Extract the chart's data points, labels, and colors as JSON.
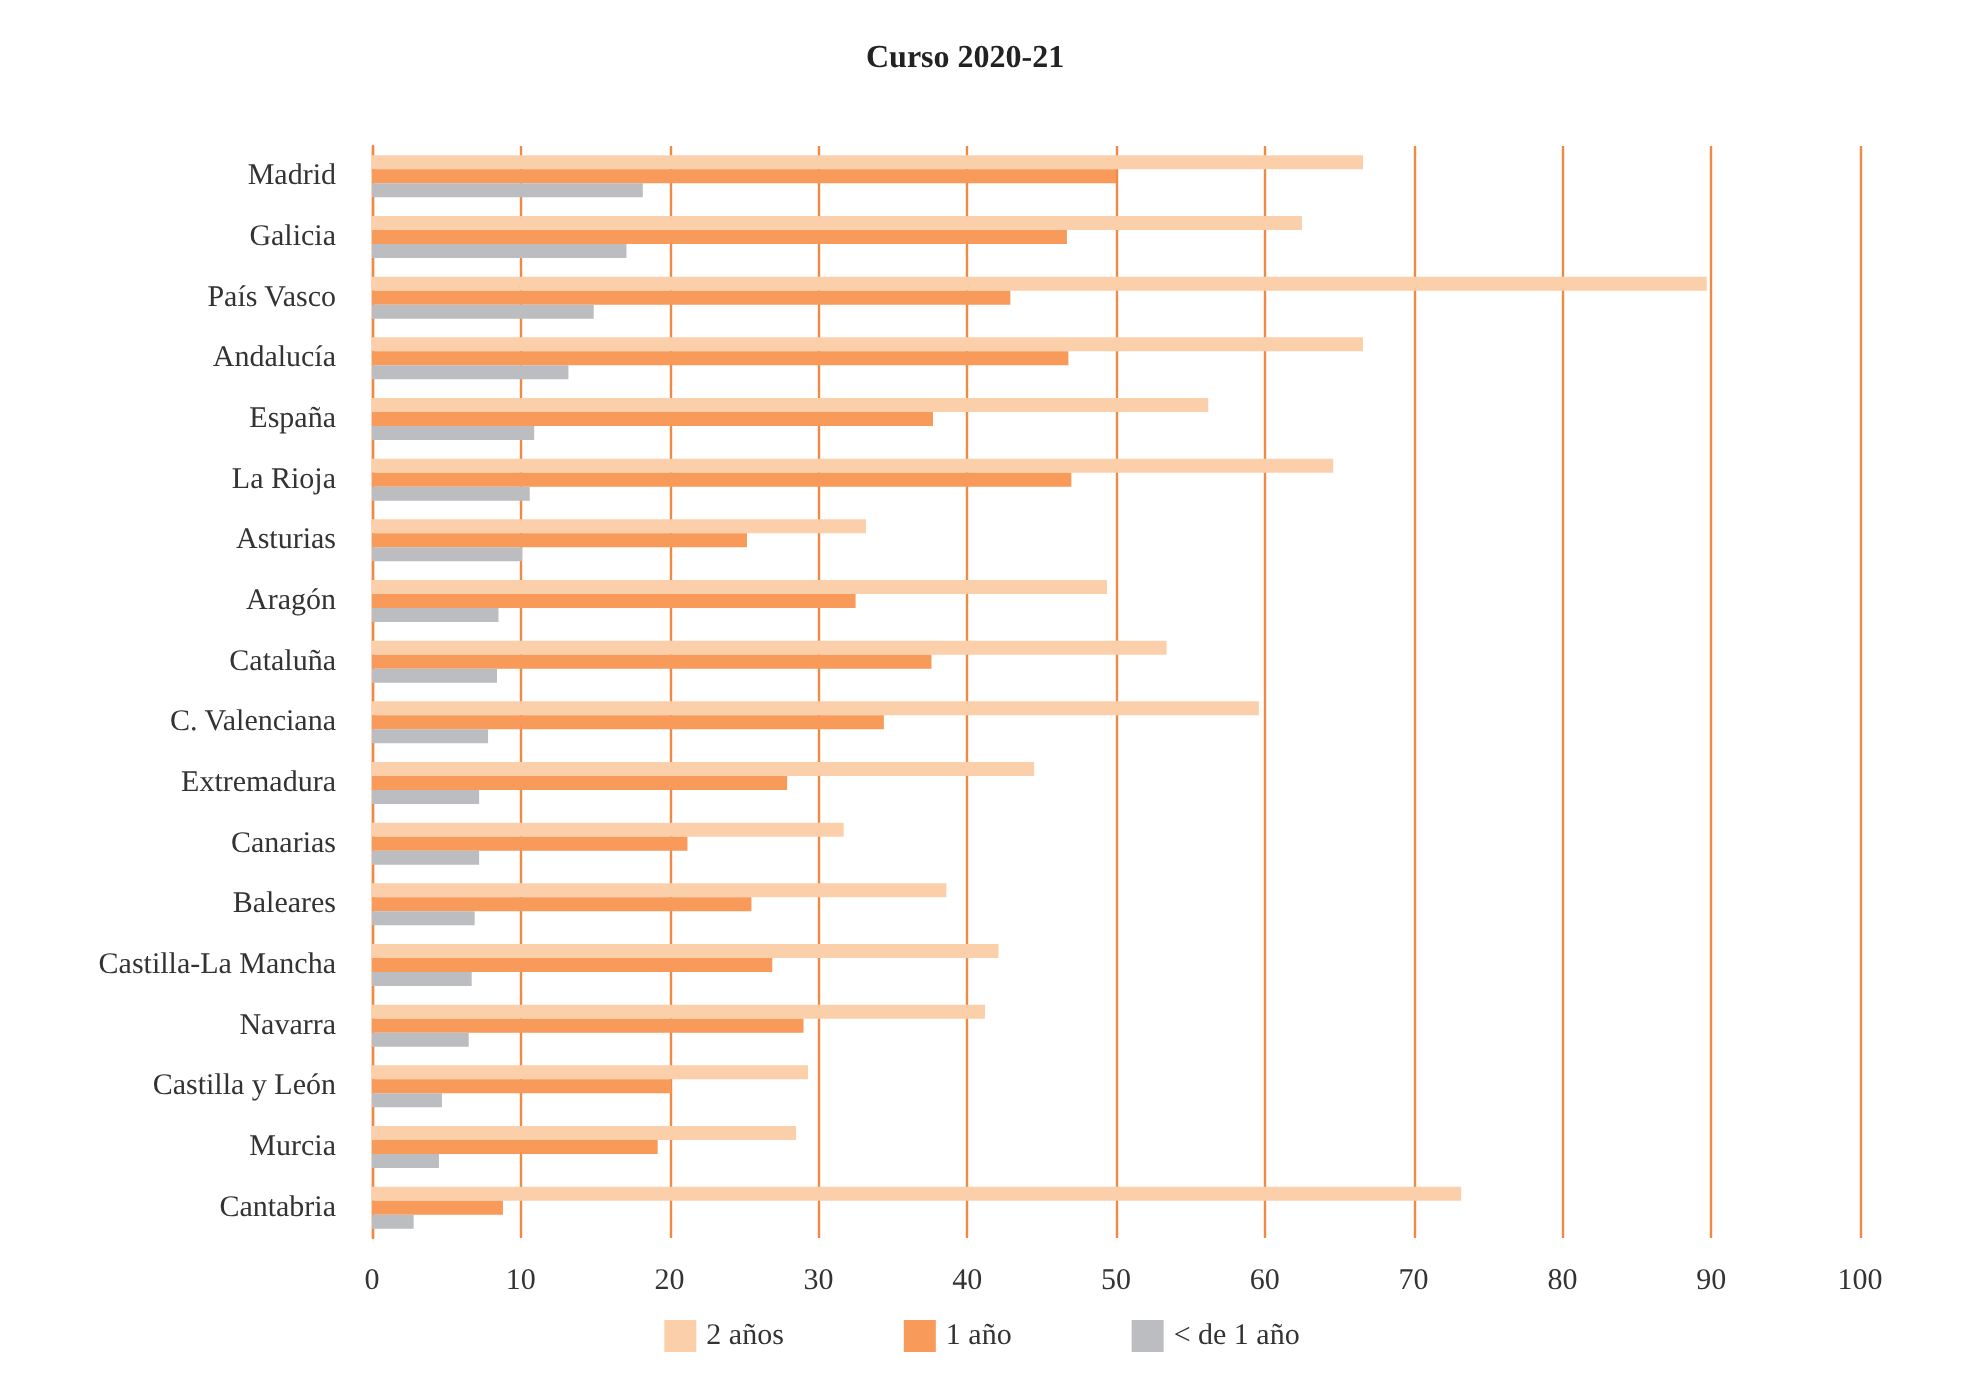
{
  "chart_data": {
    "type": "bar",
    "orientation": "horizontal",
    "title": "Curso 2020-21",
    "categories": [
      "Madrid",
      "Galicia",
      "País Vasco",
      "Andalucía",
      "España",
      "La Rioja",
      "Asturias",
      "Aragón",
      "Cataluña",
      "C. Valenciana",
      "Extremadura",
      "Canarias",
      "Baleares",
      "Castilla-La Mancha",
      "Navarra",
      "Castilla y León",
      "Murcia",
      "Cantabria"
    ],
    "series": [
      {
        "name": "2 años",
        "color": "#fccfab",
        "values": [
          66.6,
          62.5,
          89.7,
          66.6,
          56.2,
          64.6,
          33.2,
          49.4,
          53.4,
          59.6,
          44.5,
          31.7,
          38.6,
          42.1,
          41.2,
          29.3,
          28.5,
          73.2
        ]
      },
      {
        "name": "1 año",
        "color": "#f79a5a",
        "values": [
          50.0,
          46.7,
          42.9,
          46.8,
          37.7,
          47.0,
          25.2,
          32.5,
          37.6,
          34.4,
          27.9,
          21.2,
          25.5,
          26.9,
          29.0,
          20.1,
          19.2,
          8.8
        ]
      },
      {
        "name": "< de 1 año",
        "color": "#bcbdc1",
        "values": [
          18.2,
          17.1,
          14.9,
          13.2,
          10.9,
          10.6,
          10.1,
          8.5,
          8.4,
          7.8,
          7.2,
          7.2,
          6.9,
          6.7,
          6.5,
          4.7,
          4.5,
          2.8
        ]
      }
    ],
    "xlim": [
      0,
      100
    ],
    "xticks": [
      0,
      10,
      20,
      30,
      40,
      50,
      60,
      70,
      80,
      90,
      100
    ],
    "grid": "x",
    "legend": "bottom"
  }
}
